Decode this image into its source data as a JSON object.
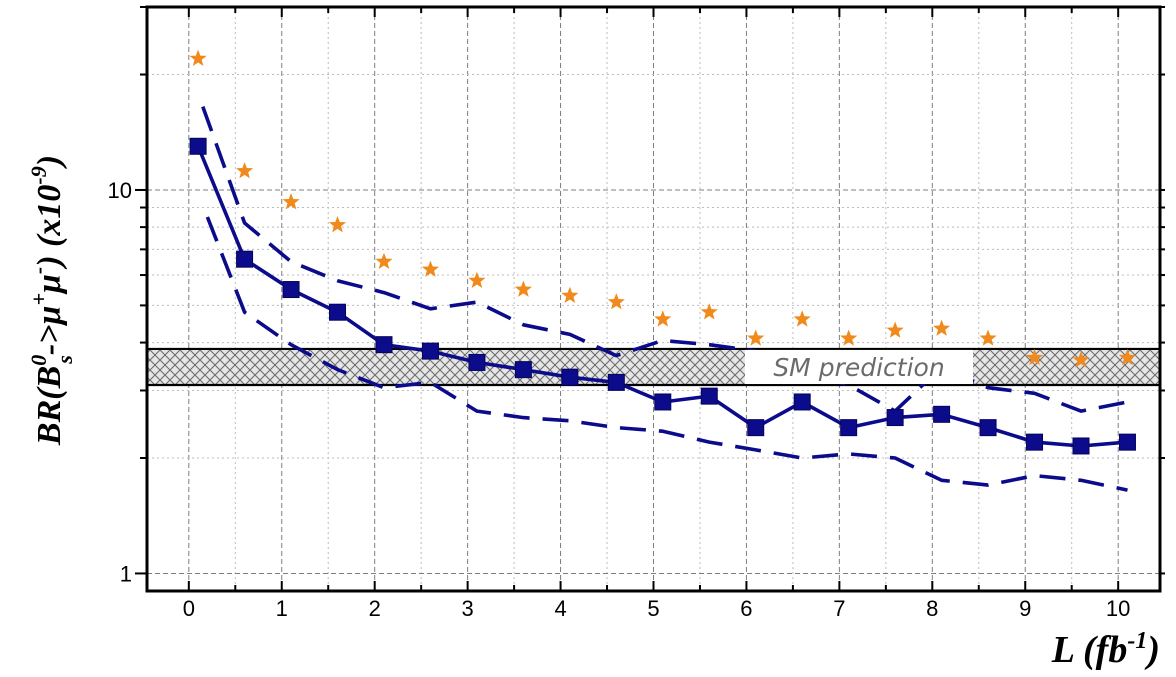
{
  "chart_data": {
    "type": "line",
    "title": "",
    "xlabel": "L (fb⁻¹)",
    "ylabel": "BR(B⁰ₛ->μ⁺μ⁻) (x10⁻⁹)",
    "xlim": [
      -0.45,
      10.45
    ],
    "ylim": [
      0.9,
      30
    ],
    "y_scale": "log",
    "grid": true,
    "x_ticks": [
      0,
      1,
      2,
      3,
      4,
      5,
      6,
      7,
      8,
      9,
      10
    ],
    "y_ticks": [
      1,
      10
    ],
    "series": [
      {
        "marker": "square",
        "line": "solid",
        "color": "#0b0b8c",
        "x": [
          0.1,
          0.6,
          1.1,
          1.6,
          2.1,
          2.6,
          3.1,
          3.6,
          4.1,
          4.6,
          5.1,
          5.6,
          6.1,
          6.6,
          7.1,
          7.6,
          8.1,
          8.6,
          9.1,
          9.6,
          10.1
        ],
        "values": [
          13,
          6.6,
          5.5,
          4.8,
          3.95,
          3.8,
          3.55,
          3.4,
          3.25,
          3.15,
          2.8,
          2.9,
          2.4,
          2.8,
          2.4,
          2.55,
          2.6,
          2.4,
          2.2,
          2.15,
          2.2
        ]
      },
      {
        "marker": "none",
        "line": "dashed",
        "color": "#0b0b8c",
        "role": "upper band",
        "x": [
          0.15,
          0.6,
          1.1,
          1.6,
          2.1,
          2.6,
          3.1,
          3.6,
          4.1,
          4.6,
          5.1,
          5.6,
          6.1,
          6.6,
          7.1,
          7.6,
          8.1,
          8.6,
          9.1,
          9.6,
          10.1
        ],
        "values": [
          16.5,
          8.2,
          6.5,
          5.8,
          5.4,
          4.9,
          5.1,
          4.45,
          4.2,
          3.7,
          4.05,
          3.95,
          3.8,
          3.35,
          3.1,
          2.65,
          3.45,
          3.05,
          2.95,
          2.65,
          2.8
        ]
      },
      {
        "marker": "none",
        "line": "dashed",
        "color": "#0b0b8c",
        "role": "lower band",
        "x": [
          0.2,
          0.6,
          1.1,
          1.6,
          2.1,
          2.6,
          3.1,
          3.6,
          4.1,
          4.6,
          5.1,
          5.6,
          6.1,
          6.6,
          7.1,
          7.6,
          8.1,
          8.6,
          9.1,
          9.6,
          10.1
        ],
        "values": [
          8.5,
          4.8,
          3.95,
          3.4,
          3.05,
          3.15,
          2.65,
          2.55,
          2.5,
          2.4,
          2.35,
          2.2,
          2.1,
          2.0,
          2.05,
          2.0,
          1.75,
          1.7,
          1.8,
          1.75,
          1.65
        ]
      },
      {
        "marker": "star",
        "line": "none",
        "color": "#f08a1c",
        "x": [
          0.1,
          0.6,
          1.1,
          1.6,
          2.1,
          2.6,
          3.1,
          3.6,
          4.1,
          4.6,
          5.1,
          5.6,
          6.1,
          6.6,
          7.1,
          7.6,
          8.1,
          8.6,
          9.1,
          9.6,
          10.1
        ],
        "values": [
          22,
          11.2,
          9.3,
          8.1,
          6.5,
          6.2,
          5.8,
          5.5,
          5.3,
          5.1,
          4.6,
          4.8,
          4.1,
          4.6,
          4.1,
          4.3,
          4.35,
          4.1,
          3.65,
          3.6,
          3.65
        ]
      }
    ],
    "band": {
      "label": "SM prediction",
      "lower": 3.1,
      "upper": 3.85,
      "pattern": "cross-hatch"
    }
  }
}
